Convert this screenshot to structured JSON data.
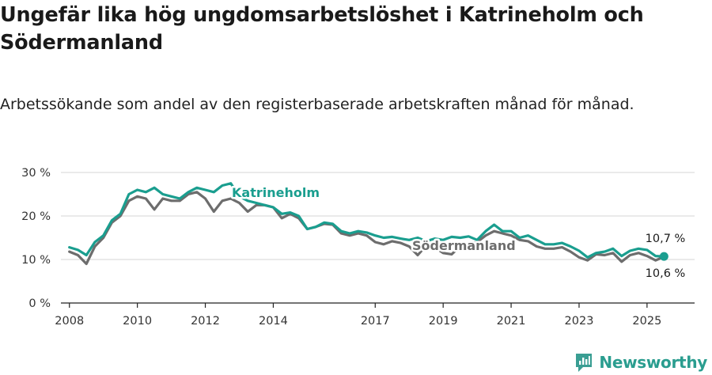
{
  "title": "Ungefär lika hög ungdomsarbetslöshet i Katrineholm och Södermanland",
  "subtitle": "Arbetssökande som andel av den registerbaserade arbetskraften månad för månad.",
  "brand": {
    "name": "Newsworthy",
    "icon": "newsworthy-logo-icon",
    "color": "#3a9e93"
  },
  "chart_data": {
    "type": "line",
    "title": "",
    "xlabel": "",
    "ylabel": "",
    "xlim": [
      2007.75,
      2026.4
    ],
    "ylim": [
      0,
      30
    ],
    "y_ticks": [
      0,
      10,
      20,
      30
    ],
    "y_tick_labels": [
      "0 %",
      "10 %",
      "20 %",
      "30 %"
    ],
    "x_ticks": [
      2008,
      2010,
      2012,
      2014,
      2017,
      2019,
      2021,
      2023,
      2025
    ],
    "x_tick_labels": [
      "2008",
      "2010",
      "2012",
      "2014",
      "2017",
      "2019",
      "2021",
      "2023",
      "2025"
    ],
    "grid": true,
    "end_labels": {
      "Katrineholm": "10,7 %",
      "Södermanland": "10,6 %"
    },
    "series": [
      {
        "name": "Katrineholm",
        "color": "#1a9e8f",
        "x": [
          2008.0,
          2008.25,
          2008.5,
          2008.75,
          2009.0,
          2009.25,
          2009.5,
          2009.75,
          2010.0,
          2010.25,
          2010.5,
          2010.75,
          2011.0,
          2011.25,
          2011.5,
          2011.75,
          2012.0,
          2012.25,
          2012.5,
          2012.75,
          2013.0,
          2013.25,
          2013.5,
          2013.75,
          2014.0,
          2014.25,
          2014.5,
          2014.75,
          2015.0,
          2015.25,
          2015.5,
          2015.75,
          2016.0,
          2016.25,
          2016.5,
          2016.75,
          2017.0,
          2017.25,
          2017.5,
          2017.75,
          2018.0,
          2018.25,
          2018.5,
          2018.75,
          2019.0,
          2019.25,
          2019.5,
          2019.75,
          2020.0,
          2020.25,
          2020.5,
          2020.75,
          2021.0,
          2021.25,
          2021.5,
          2021.75,
          2022.0,
          2022.25,
          2022.5,
          2022.75,
          2023.0,
          2023.25,
          2023.5,
          2023.75,
          2024.0,
          2024.25,
          2024.5,
          2024.75,
          2025.0,
          2025.25,
          2025.5
        ],
        "y": [
          12.8,
          12.2,
          11.0,
          14.0,
          15.5,
          19.0,
          20.5,
          25.0,
          26.0,
          25.5,
          26.5,
          25.0,
          24.5,
          24.0,
          25.5,
          26.5,
          26.0,
          25.5,
          27.0,
          27.5,
          24.5,
          23.5,
          23.0,
          22.5,
          22.0,
          20.5,
          20.8,
          20.0,
          17.0,
          17.5,
          18.5,
          18.2,
          16.5,
          16.0,
          16.5,
          16.2,
          15.5,
          15.0,
          15.2,
          14.8,
          14.5,
          15.0,
          14.2,
          14.8,
          14.5,
          15.2,
          15.0,
          15.3,
          14.5,
          16.5,
          18.0,
          16.5,
          16.5,
          15.0,
          15.5,
          14.5,
          13.5,
          13.5,
          13.8,
          13.0,
          12.0,
          10.5,
          11.5,
          11.8,
          12.5,
          10.8,
          12.0,
          12.5,
          12.2,
          10.8,
          10.7
        ]
      },
      {
        "name": "Södermanland",
        "color": "#6d6d6d",
        "x": [
          2008.0,
          2008.25,
          2008.5,
          2008.75,
          2009.0,
          2009.25,
          2009.5,
          2009.75,
          2010.0,
          2010.25,
          2010.5,
          2010.75,
          2011.0,
          2011.25,
          2011.5,
          2011.75,
          2012.0,
          2012.25,
          2012.5,
          2012.75,
          2013.0,
          2013.25,
          2013.5,
          2013.75,
          2014.0,
          2014.25,
          2014.5,
          2014.75,
          2015.0,
          2015.25,
          2015.5,
          2015.75,
          2016.0,
          2016.25,
          2016.5,
          2016.75,
          2017.0,
          2017.25,
          2017.5,
          2017.75,
          2018.0,
          2018.25,
          2018.5,
          2018.75,
          2019.0,
          2019.25,
          2019.5,
          2019.75,
          2020.0,
          2020.25,
          2020.5,
          2020.75,
          2021.0,
          2021.25,
          2021.5,
          2021.75,
          2022.0,
          2022.25,
          2022.5,
          2022.75,
          2023.0,
          2023.25,
          2023.5,
          2023.75,
          2024.0,
          2024.25,
          2024.5,
          2024.75,
          2025.0,
          2025.25,
          2025.5
        ],
        "y": [
          11.8,
          11.0,
          9.0,
          13.0,
          15.0,
          18.5,
          20.0,
          23.5,
          24.5,
          24.0,
          21.5,
          24.0,
          23.5,
          23.5,
          25.0,
          25.5,
          24.0,
          21.0,
          23.5,
          24.0,
          23.0,
          21.0,
          22.5,
          22.5,
          22.0,
          19.5,
          20.5,
          19.5,
          17.0,
          17.5,
          18.2,
          18.0,
          16.0,
          15.5,
          16.0,
          15.5,
          14.0,
          13.5,
          14.2,
          13.8,
          13.0,
          11.0,
          13.2,
          12.8,
          11.5,
          11.2,
          13.0,
          13.5,
          14.0,
          15.5,
          16.5,
          16.0,
          15.5,
          14.5,
          14.2,
          13.0,
          12.5,
          12.5,
          12.8,
          11.8,
          10.5,
          9.8,
          11.2,
          11.0,
          11.5,
          9.5,
          11.0,
          11.5,
          10.8,
          9.8,
          10.6
        ]
      }
    ]
  }
}
